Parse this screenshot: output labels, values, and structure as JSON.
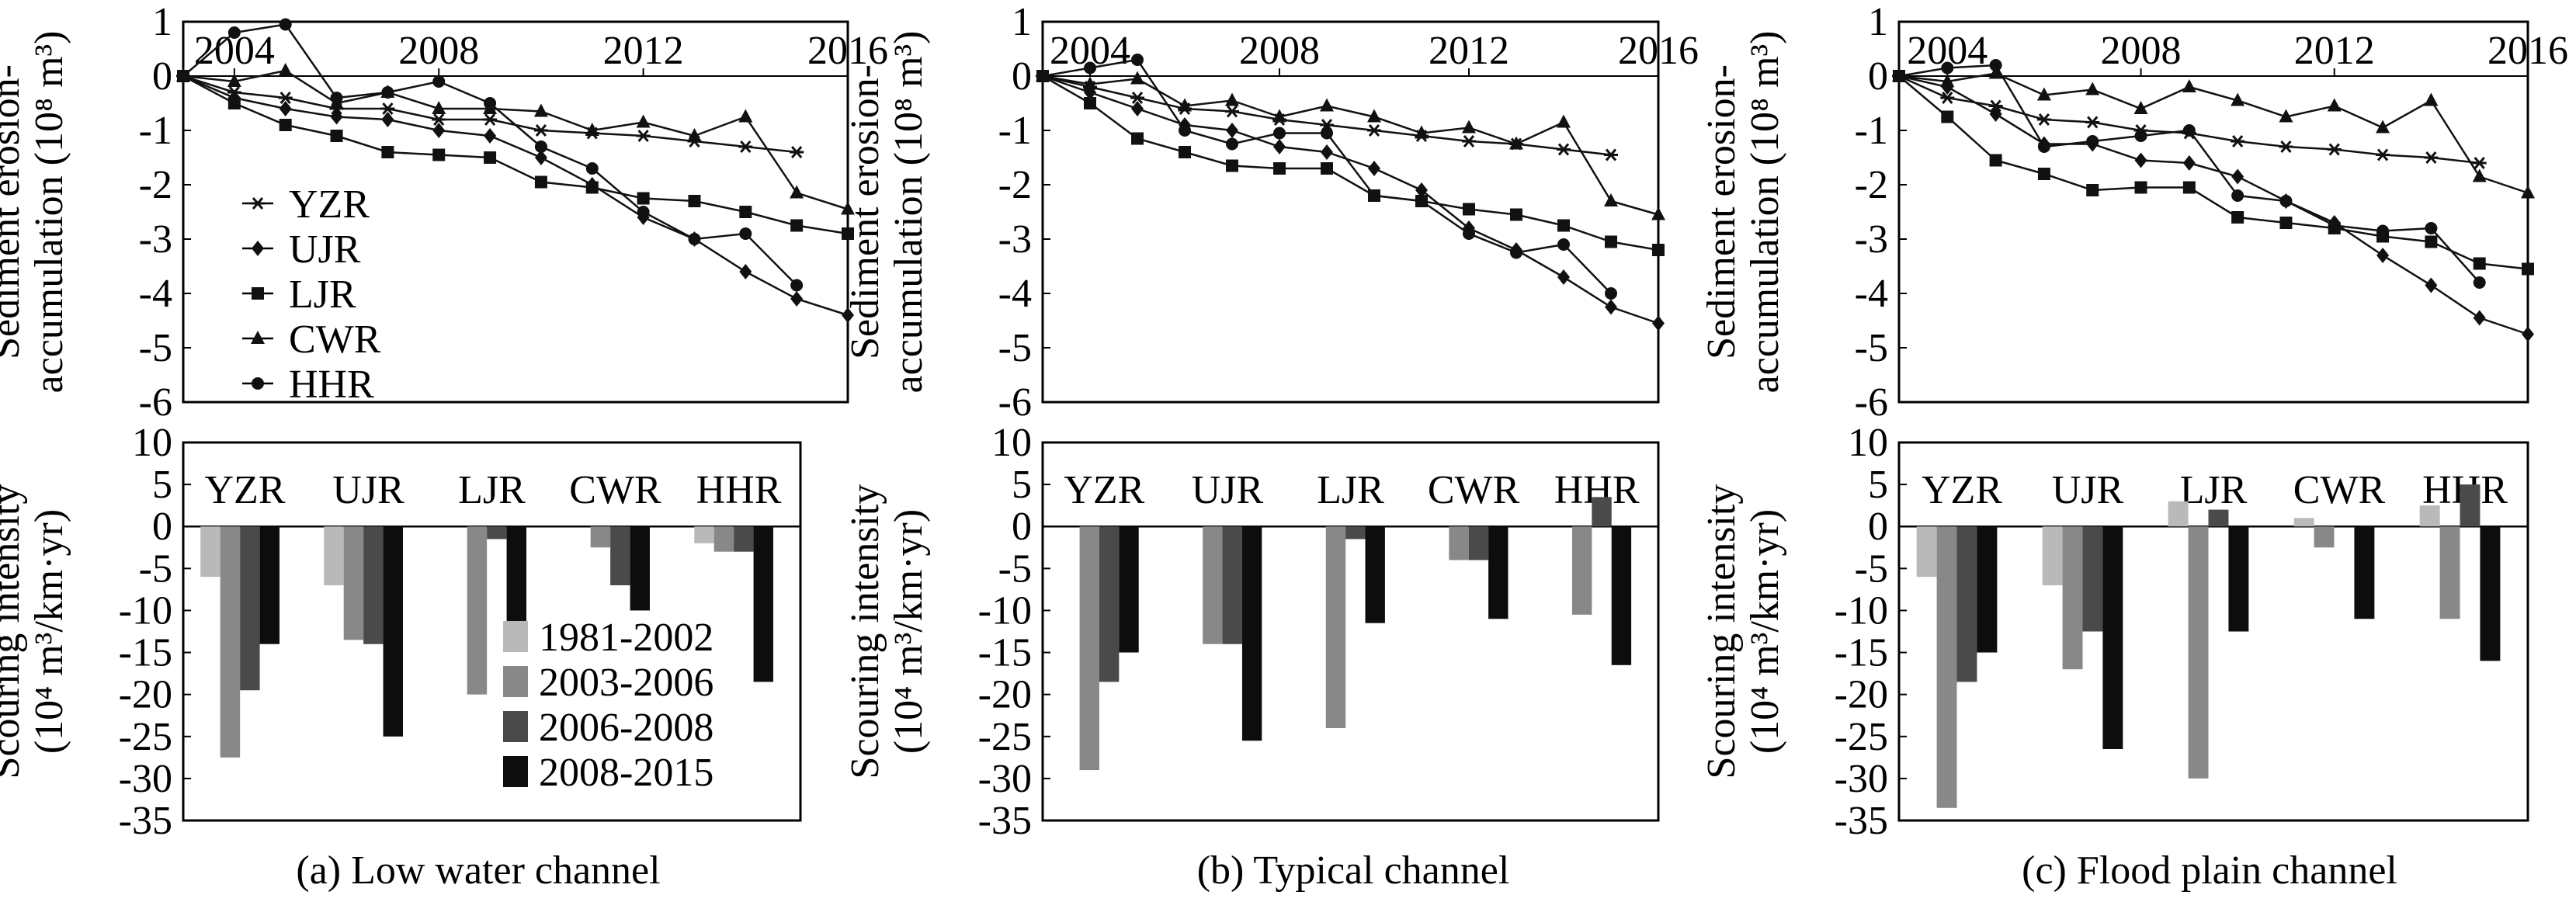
{
  "colors": {
    "period_1981_2002": "#b9b9b9",
    "period_2003_2006": "#888888",
    "period_2006_2008": "#4a4a4a",
    "period_2008_2015": "#0d0d0d",
    "line": "#111111"
  },
  "legends": {
    "lines": [
      {
        "name": "YZR",
        "marker": "star"
      },
      {
        "name": "UJR",
        "marker": "diamond"
      },
      {
        "name": "LJR",
        "marker": "square"
      },
      {
        "name": "CWR",
        "marker": "triangle"
      },
      {
        "name": "HHR",
        "marker": "circle"
      }
    ],
    "bars": [
      "1981-2002",
      "2003-2006",
      "2006-2008",
      "2008-2015"
    ]
  },
  "chart_data": [
    {
      "type": "line",
      "panel": "a",
      "ylabel": [
        "Sediment erosion-",
        "accumulation (10⁸ m³)"
      ],
      "xlim": [
        2003,
        2016
      ],
      "ylim": [
        -6,
        1
      ],
      "xticks": [
        "2004",
        "2008",
        "2012",
        "2016"
      ],
      "yticks": [
        "1",
        "0",
        "-1",
        "-2",
        "-3",
        "-4",
        "-5",
        "-6"
      ],
      "series": [
        {
          "name": "YZR",
          "x": [
            2003,
            2004,
            2005,
            2006,
            2007,
            2008,
            2009,
            2010,
            2011,
            2012,
            2013,
            2014,
            2015
          ],
          "y": [
            0,
            -0.3,
            -0.4,
            -0.6,
            -0.6,
            -0.8,
            -0.8,
            -1.0,
            -1.05,
            -1.1,
            -1.2,
            -1.3,
            -1.4
          ]
        },
        {
          "name": "UJR",
          "x": [
            2003,
            2004,
            2005,
            2006,
            2007,
            2008,
            2009,
            2010,
            2011,
            2012,
            2013,
            2014,
            2015,
            2016
          ],
          "y": [
            0,
            -0.4,
            -0.6,
            -0.75,
            -0.8,
            -1.0,
            -1.1,
            -1.5,
            -2.0,
            -2.6,
            -3.0,
            -3.6,
            -4.1,
            -4.4
          ]
        },
        {
          "name": "LJR",
          "x": [
            2003,
            2004,
            2005,
            2006,
            2007,
            2008,
            2009,
            2010,
            2011,
            2012,
            2013,
            2014,
            2015,
            2016
          ],
          "y": [
            0,
            -0.5,
            -0.9,
            -1.1,
            -1.4,
            -1.45,
            -1.5,
            -1.95,
            -2.05,
            -2.25,
            -2.3,
            -2.5,
            -2.75,
            -2.9
          ]
        },
        {
          "name": "CWR",
          "x": [
            2003,
            2004,
            2005,
            2006,
            2007,
            2008,
            2009,
            2010,
            2011,
            2012,
            2013,
            2014,
            2015,
            2016
          ],
          "y": [
            0,
            -0.1,
            0.1,
            -0.5,
            -0.3,
            -0.6,
            -0.6,
            -0.65,
            -1.0,
            -0.85,
            -1.1,
            -0.75,
            -2.15,
            -2.45
          ]
        },
        {
          "name": "HHR",
          "x": [
            2003,
            2004,
            2005,
            2006,
            2007,
            2008,
            2009,
            2010,
            2011,
            2012,
            2013,
            2014,
            2015
          ],
          "y": [
            0,
            0.8,
            0.95,
            -0.4,
            -0.3,
            -0.1,
            -0.5,
            -1.3,
            -1.7,
            -2.5,
            -3.0,
            -2.9,
            -3.85
          ]
        }
      ]
    },
    {
      "type": "bar",
      "panel": "a",
      "ylabel": [
        "Scouring intensity",
        "(10⁴ m³/km·yr)"
      ],
      "ylim": [
        -35,
        10
      ],
      "yticks": [
        "10",
        "5",
        "0",
        "-5",
        "-10",
        "-15",
        "-20",
        "-25",
        "-30",
        "-35"
      ],
      "categories": [
        "YZR",
        "UJR",
        "LJR",
        "CWR",
        "HHR"
      ],
      "series": [
        {
          "name": "1981-2002",
          "values": [
            -6,
            -7,
            0,
            0,
            -2
          ]
        },
        {
          "name": "2003-2006",
          "values": [
            -27.5,
            -13.5,
            -20,
            -2.5,
            -3
          ]
        },
        {
          "name": "2006-2008",
          "values": [
            -19.5,
            -14,
            -1.5,
            -7,
            -3
          ]
        },
        {
          "name": "2008-2015",
          "values": [
            -14,
            -25,
            -11.5,
            -10,
            -18.5
          ]
        }
      ]
    },
    {
      "type": "line",
      "panel": "b",
      "ylabel": [
        "Sediment erosion-",
        "accumulation (10⁸ m³)"
      ],
      "xlim": [
        2003,
        2016
      ],
      "ylim": [
        -6,
        1
      ],
      "xticks": [
        "2004",
        "2008",
        "2012",
        "2016"
      ],
      "yticks": [
        "1",
        "0",
        "-1",
        "-2",
        "-3",
        "-4",
        "-5",
        "-6"
      ],
      "series": [
        {
          "name": "YZR",
          "x": [
            2003,
            2004,
            2005,
            2006,
            2007,
            2008,
            2009,
            2010,
            2011,
            2012,
            2013,
            2014,
            2015
          ],
          "y": [
            0,
            -0.2,
            -0.4,
            -0.6,
            -0.65,
            -0.8,
            -0.9,
            -1.0,
            -1.1,
            -1.2,
            -1.25,
            -1.35,
            -1.45
          ]
        },
        {
          "name": "UJR",
          "x": [
            2003,
            2004,
            2005,
            2006,
            2007,
            2008,
            2009,
            2010,
            2011,
            2012,
            2013,
            2014,
            2015,
            2016
          ],
          "y": [
            0,
            -0.3,
            -0.6,
            -0.9,
            -1.0,
            -1.3,
            -1.4,
            -1.7,
            -2.1,
            -2.8,
            -3.2,
            -3.7,
            -4.25,
            -4.55
          ]
        },
        {
          "name": "LJR",
          "x": [
            2003,
            2004,
            2005,
            2006,
            2007,
            2008,
            2009,
            2010,
            2011,
            2012,
            2013,
            2014,
            2015,
            2016
          ],
          "y": [
            0,
            -0.5,
            -1.15,
            -1.4,
            -1.65,
            -1.7,
            -1.7,
            -2.2,
            -2.3,
            -2.45,
            -2.55,
            -2.75,
            -3.05,
            -3.2
          ]
        },
        {
          "name": "CWR",
          "x": [
            2003,
            2004,
            2005,
            2006,
            2007,
            2008,
            2009,
            2010,
            2011,
            2012,
            2013,
            2014,
            2015,
            2016
          ],
          "y": [
            0,
            -0.15,
            -0.05,
            -0.55,
            -0.45,
            -0.75,
            -0.55,
            -0.75,
            -1.05,
            -0.95,
            -1.25,
            -0.85,
            -2.3,
            -2.55
          ]
        },
        {
          "name": "HHR",
          "x": [
            2003,
            2004,
            2005,
            2006,
            2007,
            2008,
            2009,
            2010,
            2011,
            2012,
            2013,
            2014,
            2015
          ],
          "y": [
            0,
            0.15,
            0.3,
            -1.0,
            -1.25,
            -1.05,
            -1.05,
            -2.2,
            -2.3,
            -2.9,
            -3.25,
            -3.1,
            -4.0
          ]
        }
      ]
    },
    {
      "type": "bar",
      "panel": "b",
      "ylabel": [
        "Scouring intensity",
        "(10⁴ m³/km·yr)"
      ],
      "ylim": [
        -35,
        10
      ],
      "yticks": [
        "10",
        "5",
        "0",
        "-5",
        "-10",
        "-15",
        "-20",
        "-25",
        "-30",
        "-35"
      ],
      "categories": [
        "YZR",
        "UJR",
        "LJR",
        "CWR",
        "HHR"
      ],
      "series": [
        {
          "name": "1981-2002",
          "values": [
            0,
            0,
            0,
            0,
            0
          ]
        },
        {
          "name": "2003-2006",
          "values": [
            -29,
            -14,
            -24,
            -4,
            -10.5
          ]
        },
        {
          "name": "2006-2008",
          "values": [
            -18.5,
            -14,
            -1.5,
            -4,
            3.5
          ]
        },
        {
          "name": "2008-2015",
          "values": [
            -15,
            -25.5,
            -11.5,
            -11,
            -16.5
          ]
        }
      ]
    },
    {
      "type": "line",
      "panel": "c",
      "ylabel": [
        "Sediment erosion-",
        "accumulation (10⁸ m³)"
      ],
      "xlim": [
        2003,
        2016
      ],
      "ylim": [
        -6,
        1
      ],
      "xticks": [
        "2004",
        "2008",
        "2012",
        "2016"
      ],
      "yticks": [
        "1",
        "0",
        "-1",
        "-2",
        "-3",
        "-4",
        "-5",
        "-6"
      ],
      "series": [
        {
          "name": "YZR",
          "x": [
            2003,
            2004,
            2005,
            2006,
            2007,
            2008,
            2009,
            2010,
            2011,
            2012,
            2013,
            2014,
            2015
          ],
          "y": [
            0,
            -0.4,
            -0.55,
            -0.8,
            -0.85,
            -1.0,
            -1.05,
            -1.2,
            -1.3,
            -1.35,
            -1.45,
            -1.5,
            -1.6
          ]
        },
        {
          "name": "UJR",
          "x": [
            2003,
            2004,
            2005,
            2006,
            2007,
            2008,
            2009,
            2010,
            2011,
            2012,
            2013,
            2014,
            2015,
            2016
          ],
          "y": [
            0,
            -0.2,
            -0.7,
            -1.25,
            -1.25,
            -1.55,
            -1.6,
            -1.85,
            -2.3,
            -2.7,
            -3.3,
            -3.85,
            -4.45,
            -4.75
          ]
        },
        {
          "name": "LJR",
          "x": [
            2003,
            2004,
            2005,
            2006,
            2007,
            2008,
            2009,
            2010,
            2011,
            2012,
            2013,
            2014,
            2015,
            2016
          ],
          "y": [
            0,
            -0.75,
            -1.55,
            -1.8,
            -2.1,
            -2.05,
            -2.05,
            -2.6,
            -2.7,
            -2.8,
            -2.95,
            -3.05,
            -3.45,
            -3.55
          ]
        },
        {
          "name": "CWR",
          "x": [
            2003,
            2004,
            2005,
            2006,
            2007,
            2008,
            2009,
            2010,
            2011,
            2012,
            2013,
            2014,
            2015,
            2016
          ],
          "y": [
            0,
            -0.1,
            0.05,
            -0.35,
            -0.25,
            -0.6,
            -0.2,
            -0.45,
            -0.75,
            -0.55,
            -0.95,
            -0.45,
            -1.85,
            -2.15
          ]
        },
        {
          "name": "HHR",
          "x": [
            2003,
            2004,
            2005,
            2006,
            2007,
            2008,
            2009,
            2010,
            2011,
            2012,
            2013,
            2014,
            2015
          ],
          "y": [
            0,
            0.15,
            0.2,
            -1.3,
            -1.2,
            -1.1,
            -1.0,
            -2.2,
            -2.3,
            -2.75,
            -2.85,
            -2.8,
            -3.8
          ]
        }
      ]
    },
    {
      "type": "bar",
      "panel": "c",
      "ylabel": [
        "Scouring intensity",
        "(10⁴ m³/km·yr)"
      ],
      "ylim": [
        -35,
        10
      ],
      "yticks": [
        "10",
        "5",
        "0",
        "-5",
        "-10",
        "-15",
        "-20",
        "-25",
        "-30",
        "-35"
      ],
      "categories": [
        "YZR",
        "UJR",
        "LJR",
        "CWR",
        "HHR"
      ],
      "series": [
        {
          "name": "1981-2002",
          "values": [
            -6,
            -7,
            3,
            1,
            2.5
          ]
        },
        {
          "name": "2003-2006",
          "values": [
            -33.5,
            -17,
            -30,
            -2.5,
            -11
          ]
        },
        {
          "name": "2006-2008",
          "values": [
            -18.5,
            -12.5,
            2,
            0,
            5
          ]
        },
        {
          "name": "2008-2015",
          "values": [
            -15,
            -26.5,
            -12.5,
            -11,
            -16
          ]
        }
      ]
    }
  ],
  "captions": [
    "(a) Low water channel",
    "(b) Typical channel",
    "(c) Flood plain channel"
  ]
}
